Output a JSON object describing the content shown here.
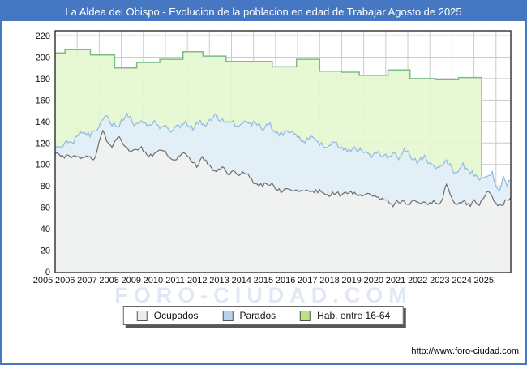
{
  "title_bar": {
    "text": "La Aldea del Obispo - Evolucion de la poblacion en edad de Trabajar Agosto de 2025"
  },
  "watermark": "FORO-CIUDAD.COM",
  "footer": {
    "source_url": "http://www.foro-ciudad.com"
  },
  "colors": {
    "frame_blue": "#4677c2",
    "title_text": "#ffffff",
    "plot_bg": "#ffffff",
    "grid": "#cccccc",
    "plot_border": "#2e2e2e",
    "axis_text": "#111111",
    "ocupados_line": "#6e6e6e",
    "ocupados_fill": "#f0f0f0",
    "ocupados_swatch": "#ececec",
    "parados_line": "#94bde4",
    "parados_fill": "#e1eefa",
    "parados_swatch": "#b7d2ee",
    "hab_line": "#7cbd84",
    "hab_fill": "#e4f7cf",
    "hab_swatch": "#b9e47e"
  },
  "chart_data": {
    "type": "area",
    "title": "La Aldea del Obispo - Evolucion de la poblacion en edad de Trabajar Agosto de 2025",
    "x_range": [
      2005,
      2025.67
    ],
    "ylim": [
      0,
      225
    ],
    "y_ticks": [
      0,
      20,
      40,
      60,
      80,
      100,
      120,
      140,
      160,
      180,
      200,
      220
    ],
    "x_tick_years": [
      2005,
      2006,
      2007,
      2008,
      2009,
      2010,
      2011,
      2012,
      2013,
      2014,
      2015,
      2016,
      2017,
      2018,
      2019,
      2020,
      2021,
      2022,
      2023,
      2024,
      2025
    ],
    "grid": true,
    "legend_position": "bottom",
    "series": {
      "ocupados": {
        "label": "Ocupados",
        "style": "area",
        "annual_avg": {
          "years": [
            2005,
            2006,
            2007,
            2008,
            2009,
            2010,
            2011,
            2012,
            2013,
            2014,
            2015,
            2016,
            2017,
            2018,
            2019,
            2020,
            2021,
            2022,
            2023,
            2024,
            2025
          ],
          "values": [
            109,
            106,
            122,
            115,
            111,
            107,
            103,
            96,
            91,
            82,
            77,
            75,
            73,
            72,
            71,
            65,
            65,
            68,
            65,
            68,
            65
          ]
        },
        "control_points": [
          [
            2005,
            111
          ],
          [
            2005.3,
            107
          ],
          [
            2005.6,
            109
          ],
          [
            2006,
            106
          ],
          [
            2006.4,
            108
          ],
          [
            2006.8,
            103
          ],
          [
            2007.05,
            124
          ],
          [
            2007.15,
            133
          ],
          [
            2007.35,
            122
          ],
          [
            2007.6,
            117
          ],
          [
            2007.9,
            126
          ],
          [
            2008.2,
            117
          ],
          [
            2008.5,
            111
          ],
          [
            2008.8,
            116
          ],
          [
            2009.1,
            112
          ],
          [
            2009.4,
            107
          ],
          [
            2009.8,
            114
          ],
          [
            2010.1,
            110
          ],
          [
            2010.4,
            103
          ],
          [
            2010.8,
            110
          ],
          [
            2011.1,
            105
          ],
          [
            2011.4,
            99
          ],
          [
            2011.7,
            106
          ],
          [
            2012,
            98
          ],
          [
            2012.3,
            93
          ],
          [
            2012.6,
            97
          ],
          [
            2012.9,
            90
          ],
          [
            2013.1,
            96
          ],
          [
            2013.35,
            87
          ],
          [
            2013.55,
            94
          ],
          [
            2013.8,
            88
          ],
          [
            2014,
            84
          ],
          [
            2014.3,
            80
          ],
          [
            2014.6,
            83
          ],
          [
            2015,
            79
          ],
          [
            2015.3,
            74
          ],
          [
            2015.6,
            78
          ],
          [
            2016,
            74
          ],
          [
            2016.3,
            77
          ],
          [
            2016.6,
            73
          ],
          [
            2017,
            76
          ],
          [
            2017.3,
            70
          ],
          [
            2017.6,
            74
          ],
          [
            2018,
            72
          ],
          [
            2018.4,
            75
          ],
          [
            2018.8,
            70
          ],
          [
            2019.2,
            73
          ],
          [
            2019.6,
            69
          ],
          [
            2020,
            67
          ],
          [
            2020.3,
            62
          ],
          [
            2020.6,
            66
          ],
          [
            2021,
            64
          ],
          [
            2021.4,
            67
          ],
          [
            2021.8,
            63
          ],
          [
            2022.2,
            66
          ],
          [
            2022.5,
            63
          ],
          [
            2022.75,
            81
          ],
          [
            2022.95,
            71
          ],
          [
            2023.2,
            63
          ],
          [
            2023.5,
            66
          ],
          [
            2023.8,
            61
          ],
          [
            2024,
            65
          ],
          [
            2024.3,
            63
          ],
          [
            2024.55,
            75
          ],
          [
            2024.8,
            71
          ],
          [
            2025,
            62
          ],
          [
            2025.2,
            61
          ],
          [
            2025.45,
            66
          ],
          [
            2025.67,
            67
          ]
        ],
        "noise_amplitude": 2.2
      },
      "parados": {
        "label": "Parados",
        "style": "area-stacked-on-ocupados",
        "annual_avg_band": {
          "years": [
            2005,
            2006,
            2007,
            2008,
            2009,
            2010,
            2011,
            2012,
            2013,
            2014,
            2015,
            2016,
            2017,
            2018,
            2019,
            2020,
            2021,
            2022,
            2023,
            2024,
            2025
          ],
          "values": [
            8,
            22,
            18,
            25,
            26,
            28,
            33,
            46,
            47,
            54,
            53,
            49,
            45,
            42,
            39,
            43,
            40,
            32,
            30,
            21,
            18
          ]
        },
        "top_control_points": [
          [
            2005,
            113
          ],
          [
            2005.2,
            117
          ],
          [
            2005.5,
            121
          ],
          [
            2005.8,
            119
          ],
          [
            2006,
            126
          ],
          [
            2006.3,
            131
          ],
          [
            2006.6,
            128
          ],
          [
            2006.9,
            132
          ],
          [
            2007.1,
            142
          ],
          [
            2007.3,
            147
          ],
          [
            2007.5,
            138
          ],
          [
            2007.8,
            135
          ],
          [
            2008,
            140
          ],
          [
            2008.3,
            146
          ],
          [
            2008.6,
            137
          ],
          [
            2008.9,
            142
          ],
          [
            2009.2,
            135
          ],
          [
            2009.5,
            140
          ],
          [
            2009.8,
            133
          ],
          [
            2010,
            138
          ],
          [
            2010.3,
            130
          ],
          [
            2010.6,
            136
          ],
          [
            2010.9,
            139
          ],
          [
            2011.2,
            133
          ],
          [
            2011.5,
            140
          ],
          [
            2011.8,
            135
          ],
          [
            2012,
            140
          ],
          [
            2012.2,
            147
          ],
          [
            2012.5,
            141
          ],
          [
            2012.8,
            137
          ],
          [
            2013,
            141
          ],
          [
            2013.3,
            135
          ],
          [
            2013.6,
            140
          ],
          [
            2013.9,
            136
          ],
          [
            2014.1,
            141
          ],
          [
            2014.4,
            133
          ],
          [
            2014.7,
            138
          ],
          [
            2015,
            132
          ],
          [
            2015.3,
            127
          ],
          [
            2015.6,
            131
          ],
          [
            2016,
            126
          ],
          [
            2016.3,
            121
          ],
          [
            2016.6,
            125
          ],
          [
            2017,
            119
          ],
          [
            2017.3,
            115
          ],
          [
            2017.6,
            121
          ],
          [
            2018,
            115
          ],
          [
            2018.3,
            112
          ],
          [
            2018.6,
            116
          ],
          [
            2019,
            111
          ],
          [
            2019.3,
            107
          ],
          [
            2019.6,
            112
          ],
          [
            2020,
            107
          ],
          [
            2020.3,
            111
          ],
          [
            2020.6,
            104
          ],
          [
            2020.9,
            115
          ],
          [
            2021.1,
            108
          ],
          [
            2021.4,
            102
          ],
          [
            2021.7,
            107
          ],
          [
            2022,
            101
          ],
          [
            2022.3,
            96
          ],
          [
            2022.6,
            99
          ],
          [
            2022.8,
            103
          ],
          [
            2023,
            95
          ],
          [
            2023.2,
            90
          ],
          [
            2023.5,
            100
          ],
          [
            2023.7,
            93
          ],
          [
            2024,
            91
          ],
          [
            2024.2,
            88
          ],
          [
            2024.45,
            86
          ],
          [
            2024.7,
            89
          ],
          [
            2024.85,
            92
          ],
          [
            2025,
            78
          ],
          [
            2025.15,
            77
          ],
          [
            2025.35,
            88
          ],
          [
            2025.5,
            82
          ],
          [
            2025.67,
            86
          ]
        ],
        "noise_amplitude": 2.6
      },
      "hab_entre_16_64": {
        "label": "Hab. entre 16-64",
        "style": "step-area",
        "annual": {
          "years": [
            2005,
            2006,
            2007,
            2008,
            2009,
            2010,
            2011,
            2012,
            2013,
            2014,
            2015,
            2016,
            2017,
            2018,
            2019,
            2020,
            2021,
            2022,
            2023,
            2024
          ],
          "values": [
            204,
            207,
            202,
            190,
            195,
            198,
            205,
            201,
            196,
            196,
            191,
            198,
            187,
            186,
            183,
            188,
            180,
            179,
            181,
            181
          ]
        },
        "steps": [
          [
            2005,
            204
          ],
          [
            2005.45,
            207
          ],
          [
            2006.6,
            202
          ],
          [
            2007.7,
            190
          ],
          [
            2008.7,
            195
          ],
          [
            2009.75,
            198
          ],
          [
            2010.8,
            205
          ],
          [
            2011.7,
            201
          ],
          [
            2012.75,
            196
          ],
          [
            2013.85,
            196
          ],
          [
            2014.85,
            191
          ],
          [
            2015.95,
            198
          ],
          [
            2017,
            187
          ],
          [
            2018,
            186
          ],
          [
            2018.8,
            183
          ],
          [
            2020.1,
            188
          ],
          [
            2021.1,
            180
          ],
          [
            2022.25,
            179
          ],
          [
            2023.3,
            181
          ]
        ],
        "end_t": 2024.35
      }
    }
  }
}
